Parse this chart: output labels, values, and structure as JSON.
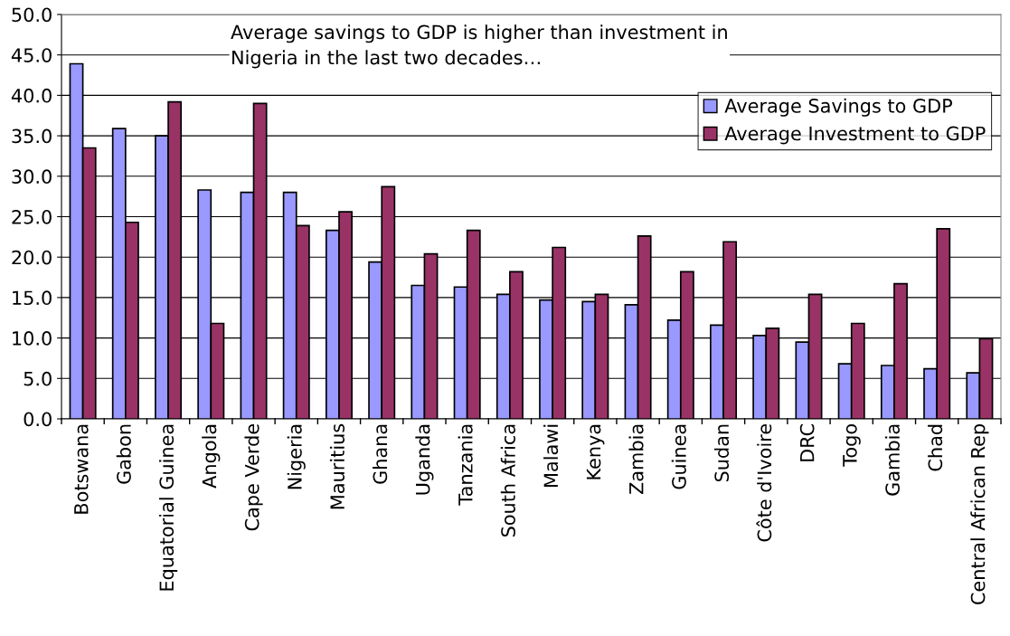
{
  "chart_data": {
    "type": "bar",
    "categories": [
      "Botswana",
      "Gabon",
      "Equatorial Guinea",
      "Angola",
      "Cape Verde",
      "Nigeria",
      "Mauritius",
      "Ghana",
      "Uganda",
      "Tanzania",
      "South Africa",
      "Malawi",
      "Kenya",
      "Zambia",
      "Guinea",
      "Sudan",
      "Côte d'Ivoire",
      "DRC",
      "Togo",
      "Gambia",
      "Chad",
      "Central African Rep"
    ],
    "series": [
      {
        "name": "Average Savings to GDP",
        "color": "#9999ff",
        "values": [
          43.9,
          35.9,
          35.0,
          28.3,
          28.0,
          28.0,
          23.3,
          19.4,
          16.5,
          16.3,
          15.4,
          14.7,
          14.5,
          14.1,
          12.2,
          11.6,
          10.3,
          9.5,
          6.8,
          6.6,
          6.2,
          5.7
        ]
      },
      {
        "name": "Average Investment to GDP",
        "color": "#993366",
        "values": [
          33.5,
          24.3,
          39.2,
          11.8,
          39.0,
          23.9,
          25.6,
          28.7,
          20.4,
          23.3,
          18.2,
          21.2,
          15.4,
          22.6,
          18.2,
          21.9,
          11.2,
          15.4,
          11.8,
          16.7,
          23.5,
          9.9
        ]
      }
    ],
    "ylim": [
      0,
      50
    ],
    "yticks": [
      {
        "value": 0,
        "label": "0.0"
      },
      {
        "value": 5,
        "label": "5.0"
      },
      {
        "value": 10,
        "label": "10.0"
      },
      {
        "value": 15,
        "label": "15.0"
      },
      {
        "value": 20,
        "label": "20.0"
      },
      {
        "value": 25,
        "label": "25.0"
      },
      {
        "value": 30,
        "label": "30.0"
      },
      {
        "value": 35,
        "label": "35.0"
      },
      {
        "value": 40,
        "label": "40.0"
      },
      {
        "value": 45,
        "label": "45.0"
      },
      {
        "value": 50,
        "label": "50.0"
      }
    ],
    "grid": "y",
    "legend": "top right",
    "annotations": [
      "Average savings to GDP is higher than investment in\nNigeria in the last two decades…"
    ]
  }
}
